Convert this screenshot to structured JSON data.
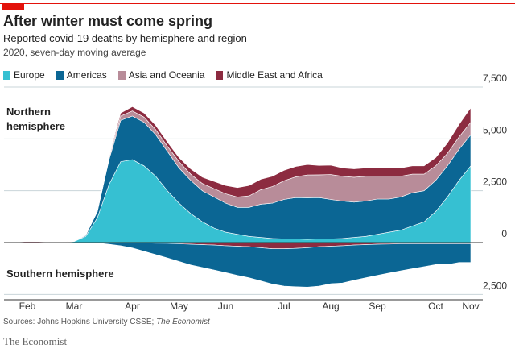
{
  "chart_data": {
    "type": "stacked-area",
    "title": "After winter must come spring",
    "subtitle": "Reported covid-19 deaths by hemisphere and region",
    "note": "2020, seven-day moving average",
    "annotations": {
      "north": "Northern hemisphere",
      "south": "Southern hemisphere"
    },
    "source": "Sources: Johns Hopkins University CSSE;",
    "source_publication": "The Economist",
    "footer": "The Economist",
    "categories": [
      null,
      null,
      "Feb",
      null,
      null,
      null,
      "Mar",
      null,
      null,
      null,
      null,
      "Apr",
      null,
      null,
      null,
      "May",
      null,
      null,
      null,
      "Jun",
      null,
      null,
      null,
      null,
      "Jul",
      null,
      null,
      null,
      "Aug",
      null,
      null,
      null,
      "Sep",
      null,
      null,
      null,
      null,
      "Oct",
      null,
      null,
      "Nov"
    ],
    "ylim": [
      -2800,
      7500
    ],
    "yticks": [
      {
        "value": 7500,
        "label": "7,500"
      },
      {
        "value": 5000,
        "label": "5,000"
      },
      {
        "value": 2500,
        "label": "2,500"
      },
      0,
      {
        "value": -2500,
        "label": "2,500"
      }
    ],
    "grid": true,
    "series": [
      {
        "name": "Europe",
        "color": "#36c0d2",
        "values": [
          0,
          0,
          0,
          0,
          0,
          10,
          50,
          300,
          1200,
          2800,
          3900,
          4000,
          3700,
          3200,
          2500,
          1900,
          1400,
          1000,
          700,
          500,
          400,
          300,
          250,
          200,
          180,
          170,
          160,
          170,
          180,
          200,
          250,
          300,
          400,
          500,
          600,
          800,
          1000,
          1500,
          2200,
          3000,
          3700
        ]
      },
      {
        "name": "Americas",
        "color": "#0b6694",
        "values": [
          0,
          0,
          0,
          0,
          0,
          0,
          5,
          50,
          300,
          1200,
          2000,
          2100,
          2100,
          2000,
          1900,
          1700,
          1600,
          1500,
          1500,
          1400,
          1300,
          1400,
          1600,
          1700,
          1900,
          2000,
          2000,
          2000,
          1900,
          1800,
          1700,
          1700,
          1700,
          1600,
          1600,
          1600,
          1500,
          1500,
          1500,
          1500,
          1500
        ]
      },
      {
        "name": "Asia and Oceania",
        "color": "#b88c99",
        "values": [
          0,
          20,
          60,
          50,
          20,
          10,
          10,
          20,
          40,
          100,
          200,
          250,
          250,
          250,
          250,
          300,
          300,
          350,
          400,
          450,
          500,
          550,
          700,
          800,
          900,
          1000,
          1100,
          1100,
          1200,
          1200,
          1200,
          1200,
          1100,
          1100,
          1000,
          900,
          800,
          700,
          600,
          600,
          600
        ]
      },
      {
        "name": "Middle East and Africa",
        "color": "#8c2b40",
        "values": [
          0,
          0,
          0,
          0,
          0,
          0,
          10,
          20,
          50,
          80,
          150,
          200,
          200,
          200,
          200,
          200,
          250,
          300,
          350,
          400,
          450,
          500,
          500,
          500,
          500,
          500,
          500,
          450,
          450,
          400,
          400,
          400,
          400,
          400,
          400,
          400,
          400,
          400,
          500,
          600,
          700
        ]
      }
    ],
    "southern_series": [
      {
        "color": "#8c2b40",
        "values": [
          0,
          0,
          0,
          0,
          0,
          0,
          0,
          0,
          0,
          0,
          0,
          -10,
          -20,
          -30,
          -40,
          -60,
          -80,
          -100,
          -120,
          -150,
          -180,
          -200,
          -250,
          -300,
          -300,
          -280,
          -250,
          -200,
          -180,
          -150,
          -120,
          -100,
          -80,
          -70,
          -60,
          -60,
          -60,
          -60,
          -60,
          -60,
          -60
        ]
      },
      {
        "color": "#0b6694",
        "values": [
          0,
          0,
          0,
          0,
          0,
          0,
          0,
          0,
          -20,
          -80,
          -150,
          -250,
          -400,
          -550,
          -700,
          -850,
          -1000,
          -1100,
          -1200,
          -1300,
          -1400,
          -1500,
          -1600,
          -1700,
          -1800,
          -1850,
          -1900,
          -1900,
          -1800,
          -1800,
          -1700,
          -1600,
          -1500,
          -1400,
          -1300,
          -1200,
          -1100,
          -1000,
          -1000,
          -900,
          -900
        ]
      }
    ]
  }
}
